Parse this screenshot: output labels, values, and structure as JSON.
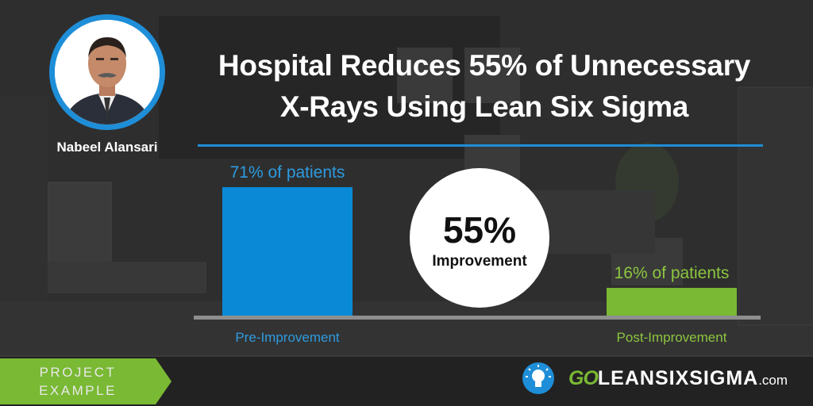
{
  "header": {
    "title_line1": "Hospital Reduces 55% of Unnecessary",
    "title_line2": "X-Rays Using Lean Six Sigma"
  },
  "author": {
    "name": "Nabeel Alansari"
  },
  "chart_data": {
    "type": "bar",
    "categories": [
      "Pre-Improvement",
      "Post-Improvement"
    ],
    "values": [
      71,
      16
    ],
    "data_labels": [
      "71% of patients",
      "16% of patients"
    ],
    "ylim": [
      0,
      100
    ],
    "unit": "% of patients",
    "grid": false,
    "colors": [
      "#0a8ad6",
      "#79b933"
    ],
    "callout": {
      "value": "55%",
      "label": "Improvement"
    }
  },
  "footer": {
    "tag_line1": "PROJECT",
    "tag_line2": "EXAMPLE",
    "logo_go": "GO",
    "logo_main": "LEANSIXSIGMA",
    "logo_suffix": ".com",
    "tag_color": "#79b933",
    "accent_color": "#1e8ed8"
  }
}
